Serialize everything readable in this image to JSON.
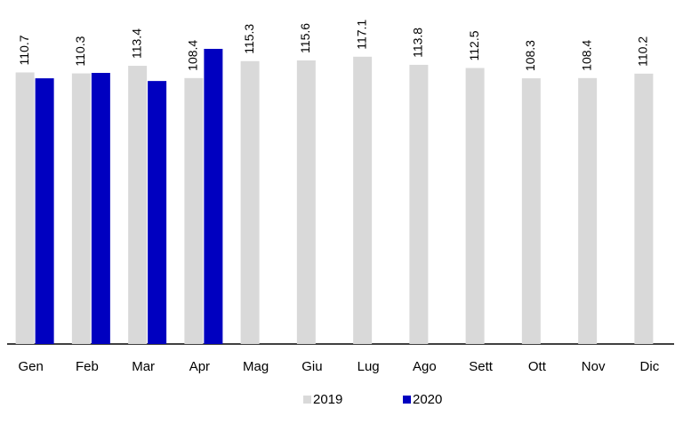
{
  "chart_data": {
    "type": "bar",
    "categories": [
      "Gen",
      "Feb",
      "Mar",
      "Apr",
      "Mag",
      "Giu",
      "Lug",
      "Ago",
      "Sett",
      "Ott",
      "Nov",
      "Dic"
    ],
    "series": [
      {
        "name": "2019",
        "color": "#d9d9d9",
        "values": [
          110.7,
          110.3,
          113.4,
          108.4,
          115.3,
          115.6,
          117.1,
          113.8,
          112.5,
          108.3,
          108.4,
          110.2
        ]
      },
      {
        "name": "2020",
        "color": "#0000c0",
        "values": [
          108.3,
          110.5,
          107.2,
          120.3,
          null,
          null,
          null,
          null,
          null,
          null,
          null,
          null
        ]
      }
    ],
    "ylim": [
      0,
      125
    ],
    "grid": false,
    "legend": "bottom"
  }
}
